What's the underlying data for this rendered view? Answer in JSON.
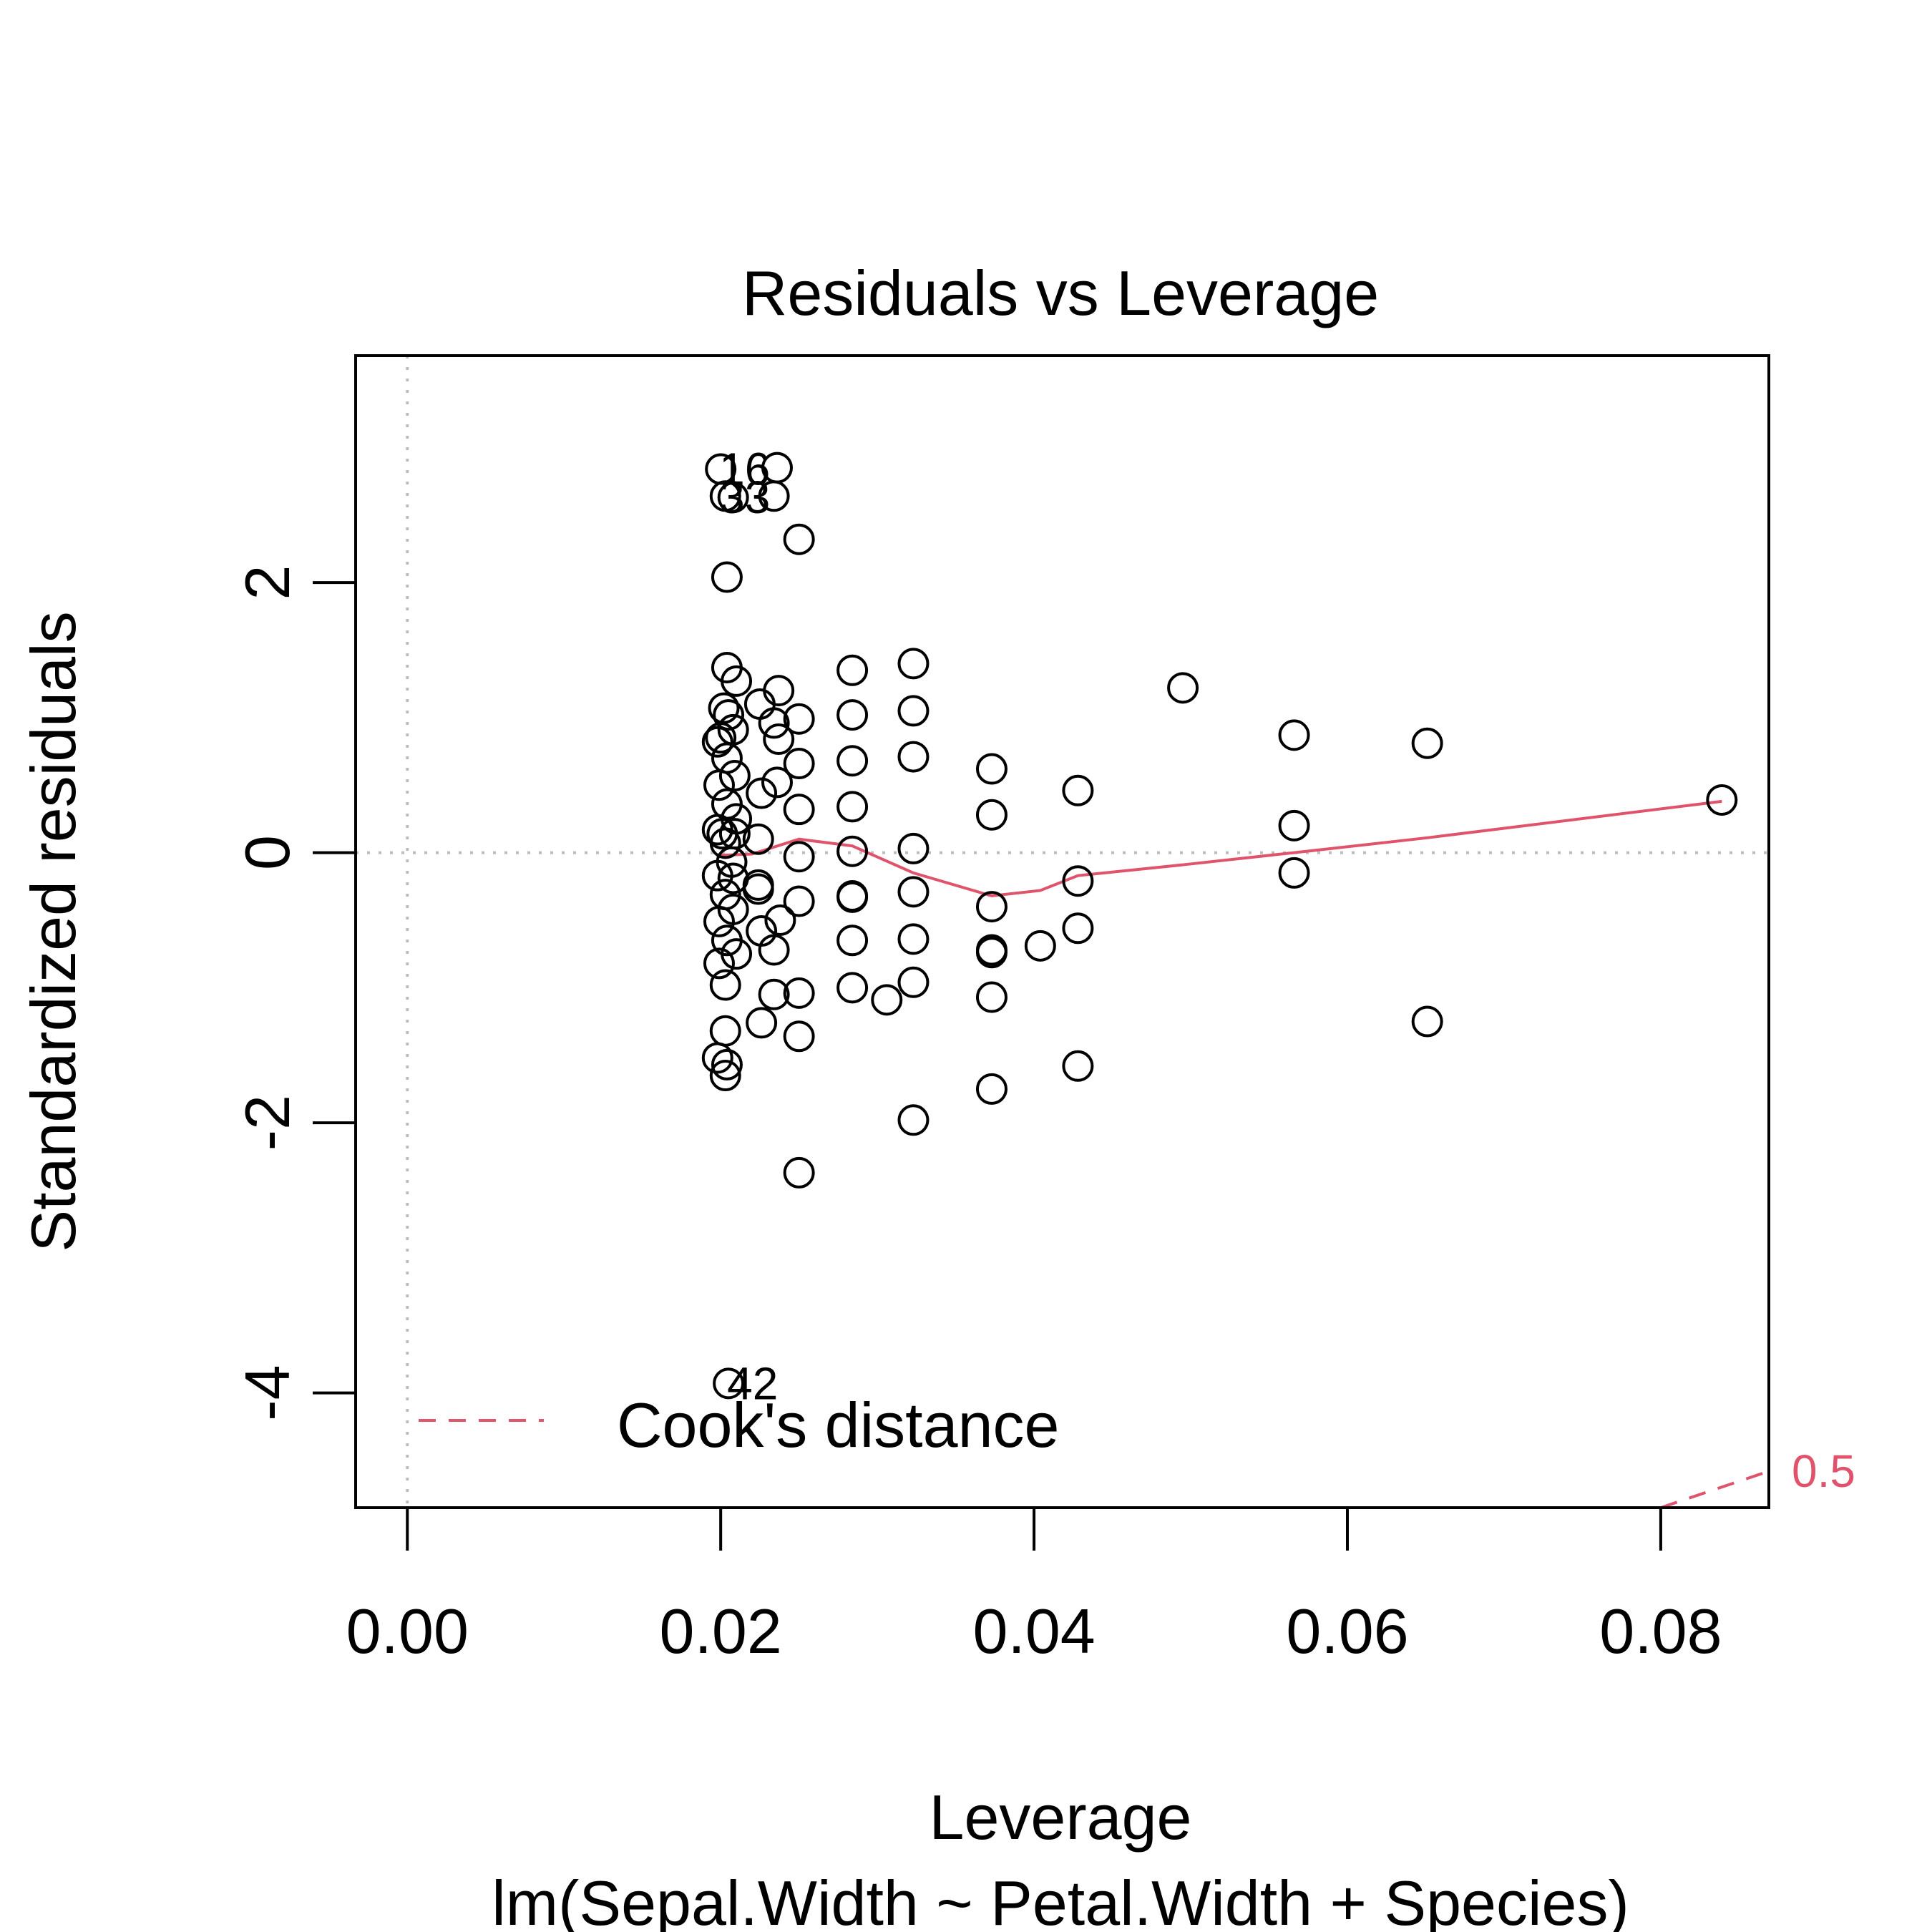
{
  "chart_data": {
    "type": "scatter",
    "title": "Residuals vs Leverage",
    "xlabel": "Leverage",
    "ylabel": "Standardized residuals",
    "subtitle": "lm(Sepal.Width ~ Petal.Width + Species)",
    "xlim": [
      -0.0033,
      0.0869
    ],
    "ylim": [
      -4.85,
      3.68
    ],
    "x_ticks": [
      0.0,
      0.02,
      0.04,
      0.06,
      0.08
    ],
    "x_tick_labels": [
      "0.00",
      "0.02",
      "0.04",
      "0.06",
      "0.08"
    ],
    "y_ticks": [
      2,
      0,
      -2,
      -4
    ],
    "y_tick_labels": [
      "2",
      "0",
      "-2",
      "-4"
    ],
    "reference_lines": {
      "x": 0,
      "y": 0,
      "style": "dotted",
      "color": "#bebebe"
    },
    "point_color": "#000000",
    "points": [
      {
        "x": 0.02,
        "y": 2.84
      },
      {
        "x": 0.0236,
        "y": 2.85
      },
      {
        "x": 0.0203,
        "y": 2.64
      },
      {
        "x": 0.0208,
        "y": 2.63
      },
      {
        "x": 0.0234,
        "y": 2.64
      },
      {
        "x": 0.025,
        "y": 2.32
      },
      {
        "x": 0.0204,
        "y": 2.04
      },
      {
        "x": 0.0204,
        "y": 1.37
      },
      {
        "x": 0.021,
        "y": 1.27
      },
      {
        "x": 0.0237,
        "y": 1.2
      },
      {
        "x": 0.0225,
        "y": 1.1
      },
      {
        "x": 0.0202,
        "y": 1.07
      },
      {
        "x": 0.0205,
        "y": 1.02
      },
      {
        "x": 0.0234,
        "y": 0.96
      },
      {
        "x": 0.025,
        "y": 0.99
      },
      {
        "x": 0.0208,
        "y": 0.91
      },
      {
        "x": 0.02,
        "y": 0.85
      },
      {
        "x": 0.0237,
        "y": 0.84
      },
      {
        "x": 0.0198,
        "y": 0.82
      },
      {
        "x": 0.0204,
        "y": 0.7
      },
      {
        "x": 0.025,
        "y": 0.66
      },
      {
        "x": 0.0209,
        "y": 0.57
      },
      {
        "x": 0.0236,
        "y": 0.52
      },
      {
        "x": 0.0199,
        "y": 0.5
      },
      {
        "x": 0.0226,
        "y": 0.44
      },
      {
        "x": 0.0204,
        "y": 0.36
      },
      {
        "x": 0.025,
        "y": 0.32
      },
      {
        "x": 0.021,
        "y": 0.25
      },
      {
        "x": 0.0198,
        "y": 0.17
      },
      {
        "x": 0.0201,
        "y": 0.14
      },
      {
        "x": 0.0209,
        "y": 0.14
      },
      {
        "x": 0.0224,
        "y": 0.1
      },
      {
        "x": 0.0203,
        "y": 0.07
      },
      {
        "x": 0.0207,
        "y": -0.07
      },
      {
        "x": 0.025,
        "y": -0.03
      },
      {
        "x": 0.0198,
        "y": -0.17
      },
      {
        "x": 0.0208,
        "y": -0.19
      },
      {
        "x": 0.0224,
        "y": -0.24
      },
      {
        "x": 0.0203,
        "y": -0.31
      },
      {
        "x": 0.0224,
        "y": -0.27
      },
      {
        "x": 0.025,
        "y": -0.36
      },
      {
        "x": 0.0208,
        "y": -0.42
      },
      {
        "x": 0.0238,
        "y": -0.5
      },
      {
        "x": 0.0199,
        "y": -0.51
      },
      {
        "x": 0.0226,
        "y": -0.58
      },
      {
        "x": 0.0204,
        "y": -0.65
      },
      {
        "x": 0.0234,
        "y": -0.72
      },
      {
        "x": 0.021,
        "y": -0.75
      },
      {
        "x": 0.0199,
        "y": -0.82
      },
      {
        "x": 0.0203,
        "y": -0.98
      },
      {
        "x": 0.0234,
        "y": -1.05
      },
      {
        "x": 0.025,
        "y": -1.04
      },
      {
        "x": 0.0226,
        "y": -1.26
      },
      {
        "x": 0.0203,
        "y": -1.32
      },
      {
        "x": 0.025,
        "y": -1.36
      },
      {
        "x": 0.0198,
        "y": -1.52
      },
      {
        "x": 0.0204,
        "y": -1.57
      },
      {
        "x": 0.0203,
        "y": -1.65
      },
      {
        "x": 0.025,
        "y": -2.37
      },
      {
        "x": 0.0205,
        "y": -3.93
      },
      {
        "x": 0.0284,
        "y": 1.35
      },
      {
        "x": 0.0284,
        "y": 1.02
      },
      {
        "x": 0.0284,
        "y": 0.68
      },
      {
        "x": 0.0284,
        "y": 0.34
      },
      {
        "x": 0.0284,
        "y": 0.01
      },
      {
        "x": 0.0284,
        "y": -0.32
      },
      {
        "x": 0.0284,
        "y": -0.33
      },
      {
        "x": 0.0284,
        "y": -0.65
      },
      {
        "x": 0.0284,
        "y": -1.0
      },
      {
        "x": 0.0306,
        "y": -1.09
      },
      {
        "x": 0.0323,
        "y": 1.4
      },
      {
        "x": 0.0323,
        "y": 1.05
      },
      {
        "x": 0.0323,
        "y": 0.71
      },
      {
        "x": 0.0323,
        "y": 0.03
      },
      {
        "x": 0.0323,
        "y": -0.29
      },
      {
        "x": 0.0323,
        "y": -0.64
      },
      {
        "x": 0.0323,
        "y": -0.96
      },
      {
        "x": 0.0323,
        "y": -1.98
      },
      {
        "x": 0.0373,
        "y": 0.62
      },
      {
        "x": 0.0373,
        "y": 0.28
      },
      {
        "x": 0.0373,
        "y": -0.4
      },
      {
        "x": 0.0373,
        "y": -0.72
      },
      {
        "x": 0.0373,
        "y": -0.74
      },
      {
        "x": 0.0373,
        "y": -1.07
      },
      {
        "x": 0.0373,
        "y": -1.75
      },
      {
        "x": 0.0404,
        "y": -0.69
      },
      {
        "x": 0.0428,
        "y": 0.46
      },
      {
        "x": 0.0428,
        "y": -0.21
      },
      {
        "x": 0.0428,
        "y": -0.56
      },
      {
        "x": 0.0428,
        "y": -1.58
      },
      {
        "x": 0.0495,
        "y": 1.22
      },
      {
        "x": 0.0566,
        "y": 0.87
      },
      {
        "x": 0.0566,
        "y": 0.2
      },
      {
        "x": 0.0566,
        "y": -0.15
      },
      {
        "x": 0.0651,
        "y": 0.81
      },
      {
        "x": 0.0651,
        "y": -1.25
      },
      {
        "x": 0.0839,
        "y": 0.39
      }
    ],
    "point_labels": [
      {
        "text": "16",
        "x": 0.02,
        "y": 2.84
      },
      {
        "text": "33",
        "x": 0.02,
        "y": 2.63
      },
      {
        "text": "42",
        "x": 0.0205,
        "y": -3.93
      }
    ],
    "smooth_line": {
      "color": "#df536b",
      "x": [
        0.02,
        0.022,
        0.025,
        0.0284,
        0.0323,
        0.0373,
        0.0404,
        0.0428,
        0.0495,
        0.0566,
        0.0651,
        0.0839
      ],
      "y": [
        -0.02,
        -0.01,
        0.1,
        0.05,
        -0.15,
        -0.32,
        -0.28,
        -0.17,
        -0.09,
        0.0,
        0.11,
        0.38
      ]
    },
    "cooks_contour": {
      "color": "#df536b",
      "label": "0.5",
      "x": [
        0.08,
        0.0869
      ],
      "y": [
        -4.85,
        -4.58
      ]
    },
    "legend": {
      "position": "bottom-left",
      "entries": [
        {
          "label": "Cook's distance",
          "color": "#df536b",
          "style": "dashed"
        }
      ]
    }
  }
}
